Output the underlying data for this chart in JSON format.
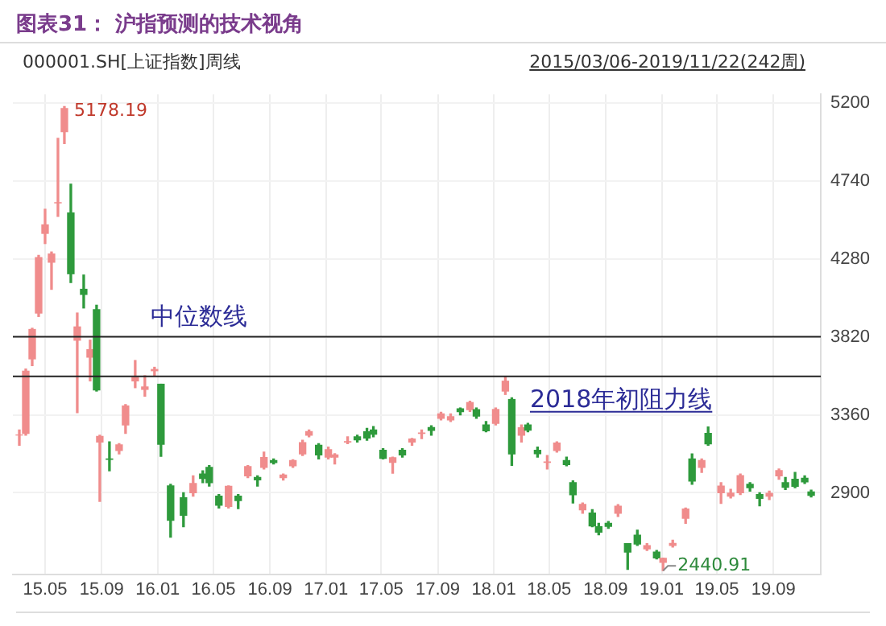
{
  "chart_data": {
    "type": "candlestick",
    "title": "图表31： 沪指预测的技术视角",
    "subtitle": "000001.SH[上证指数]周线",
    "annotations": [
      "2015/03/06-2019/11/22(242周)",
      {
        "text": "5178.19",
        "x": "2015-06-12",
        "y": 5178.19
      },
      {
        "text": "2440.91",
        "x": "2019-01-04",
        "y": 2440.91
      }
    ],
    "x": [
      "2015-03-06",
      "2015-03-20",
      "2015-04-03",
      "2015-04-17",
      "2015-05-01",
      "2015-05-15",
      "2015-05-29",
      "2015-06-12",
      "2015-06-26",
      "2015-07-10",
      "2015-07-24",
      "2015-08-07",
      "2015-08-21",
      "2015-08-28",
      "2015-09-18",
      "2015-10-09",
      "2015-10-23",
      "2015-11-13",
      "2015-12-04",
      "2015-12-25",
      "2016-01-08",
      "2016-01-29",
      "2016-02-26",
      "2016-03-18",
      "2016-04-08",
      "2016-04-22",
      "2016-05-13",
      "2016-06-03",
      "2016-06-24",
      "2016-07-15",
      "2016-08-05",
      "2016-08-19",
      "2016-09-09",
      "2016-09-30",
      "2016-10-21",
      "2016-11-11",
      "2016-11-25",
      "2016-12-16",
      "2017-01-06",
      "2017-01-20",
      "2017-02-17",
      "2017-03-10",
      "2017-03-31",
      "2017-04-14",
      "2017-05-05",
      "2017-05-26",
      "2017-06-16",
      "2017-07-07",
      "2017-07-28",
      "2017-08-18",
      "2017-09-08",
      "2017-09-29",
      "2017-10-20",
      "2017-11-10",
      "2017-11-24",
      "2017-12-15",
      "2018-01-05",
      "2018-01-26",
      "2018-02-09",
      "2018-03-02",
      "2018-03-16",
      "2018-04-06",
      "2018-04-27",
      "2018-05-18",
      "2018-06-08",
      "2018-06-22",
      "2018-07-13",
      "2018-08-03",
      "2018-08-17",
      "2018-09-07",
      "2018-09-28",
      "2018-10-19",
      "2018-11-09",
      "2018-11-30",
      "2018-12-21",
      "2019-01-04",
      "2019-01-25",
      "2019-02-22",
      "2019-03-08",
      "2019-03-29",
      "2019-04-12",
      "2019-05-10",
      "2019-05-31",
      "2019-06-21",
      "2019-07-12",
      "2019-08-02",
      "2019-08-23",
      "2019-09-13",
      "2019-09-27",
      "2019-10-18",
      "2019-11-08",
      "2019-11-22"
    ],
    "ohlc": [
      [
        3241,
        3270,
        3180,
        3241
      ],
      [
        3250,
        3630,
        3240,
        3617
      ],
      [
        3690,
        3870,
        3650,
        3863
      ],
      [
        3960,
        4300,
        3940,
        4287
      ],
      [
        4430,
        4572,
        4370,
        4480
      ],
      [
        4260,
        4320,
        4100,
        4308
      ],
      [
        4610,
        4990,
        4530,
        4611
      ],
      [
        5030,
        5178.19,
        4960,
        5166
      ],
      [
        4550,
        4720,
        4140,
        4192
      ],
      [
        3800,
        3960,
        3373,
        3878
      ],
      [
        4100,
        4184,
        3990,
        4070
      ],
      [
        3700,
        3800,
        3560,
        3744
      ],
      [
        3980,
        4006,
        3500,
        3507
      ],
      [
        3200,
        3240,
        2850,
        3232
      ],
      [
        3100,
        3200,
        3030,
        3097
      ],
      [
        3150,
        3190,
        3130,
        3183
      ],
      [
        3300,
        3420,
        3250,
        3412
      ],
      [
        3560,
        3680,
        3520,
        3580
      ],
      [
        3510,
        3590,
        3470,
        3524
      ],
      [
        3620,
        3640,
        3590,
        3627
      ],
      [
        3540,
        3540,
        3115,
        3186
      ],
      [
        2940,
        2950,
        2638,
        2738
      ],
      [
        2870,
        2900,
        2700,
        2768
      ],
      [
        2900,
        3000,
        2880,
        2955
      ],
      [
        3010,
        3030,
        2960,
        2985
      ],
      [
        3050,
        3060,
        2940,
        2960
      ],
      [
        2880,
        2890,
        2810,
        2827
      ],
      [
        2820,
        2940,
        2810,
        2938
      ],
      [
        2880,
        2890,
        2807,
        2854
      ],
      [
        3000,
        3060,
        2990,
        3054
      ],
      [
        2990,
        3000,
        2940,
        2977
      ],
      [
        3050,
        3140,
        3040,
        3108
      ],
      [
        3090,
        3100,
        3070,
        3078
      ],
      [
        2990,
        3010,
        2975,
        3005
      ],
      [
        3060,
        3095,
        3050,
        3090
      ],
      [
        3130,
        3210,
        3120,
        3196
      ],
      [
        3240,
        3270,
        3230,
        3261
      ],
      [
        3180,
        3190,
        3100,
        3123
      ],
      [
        3110,
        3170,
        3100,
        3154
      ],
      [
        3110,
        3130,
        3070,
        3123
      ],
      [
        3200,
        3230,
        3190,
        3202
      ],
      [
        3230,
        3240,
        3200,
        3212
      ],
      [
        3260,
        3280,
        3210,
        3223
      ],
      [
        3270,
        3290,
        3230,
        3246
      ],
      [
        3150,
        3160,
        3100,
        3103
      ],
      [
        3080,
        3110,
        3016,
        3107
      ],
      [
        3150,
        3160,
        3110,
        3123
      ],
      [
        3200,
        3220,
        3180,
        3217
      ],
      [
        3250,
        3270,
        3220,
        3253
      ],
      [
        3285,
        3295,
        3240,
        3268
      ],
      [
        3340,
        3375,
        3330,
        3365
      ],
      [
        3330,
        3365,
        3320,
        3348
      ],
      [
        3395,
        3400,
        3360,
        3378
      ],
      [
        3390,
        3440,
        3380,
        3432
      ],
      [
        3390,
        3400,
        3340,
        3353
      ],
      [
        3300,
        3320,
        3260,
        3266
      ],
      [
        3310,
        3400,
        3300,
        3391
      ],
      [
        3500,
        3587,
        3480,
        3558
      ],
      [
        3450,
        3460,
        3062,
        3129
      ],
      [
        3240,
        3300,
        3200,
        3283
      ],
      [
        3300,
        3310,
        3260,
        3269
      ],
      [
        3150,
        3170,
        3110,
        3131
      ],
      [
        3080,
        3120,
        3040,
        3082
      ],
      [
        3150,
        3200,
        3140,
        3193
      ],
      [
        3090,
        3110,
        3060,
        3067
      ],
      [
        2960,
        2970,
        2840,
        2889
      ],
      [
        2800,
        2840,
        2780,
        2831
      ],
      [
        2780,
        2800,
        2700,
        2705
      ],
      [
        2700,
        2720,
        2653,
        2668
      ],
      [
        2720,
        2730,
        2690,
        2702
      ],
      [
        2780,
        2830,
        2760,
        2821
      ],
      [
        2600,
        2600,
        2449,
        2550
      ],
      [
        2650,
        2680,
        2590,
        2598
      ],
      [
        2570,
        2600,
        2560,
        2588
      ],
      [
        2550,
        2560,
        2510,
        2516
      ],
      [
        2490,
        2515,
        2440.91,
        2514
      ],
      [
        2590,
        2620,
        2580,
        2601
      ],
      [
        2750,
        2810,
        2720,
        2804
      ],
      [
        3100,
        3129,
        2950,
        2969
      ],
      [
        3050,
        3100,
        3020,
        3090
      ],
      [
        3250,
        3288,
        3180,
        3189
      ],
      [
        2900,
        2960,
        2838,
        2939
      ],
      [
        2880,
        2920,
        2870,
        2898
      ],
      [
        2900,
        3010,
        2890,
        3001
      ],
      [
        2950,
        2960,
        2910,
        2930
      ],
      [
        2890,
        2900,
        2823,
        2867
      ],
      [
        2880,
        2910,
        2860,
        2897
      ],
      [
        3000,
        3040,
        2980,
        3031
      ],
      [
        2960,
        2990,
        2920,
        2932
      ],
      [
        2980,
        3020,
        2930,
        2938
      ],
      [
        2985,
        3000,
        2955,
        2964
      ],
      [
        2905,
        2915,
        2875,
        2885
      ]
    ],
    "colors": [
      "#f08c8c",
      "#f08c8c",
      "#f08c8c",
      "#f08c8c",
      "#f08c8c",
      "#f08c8c",
      "#f08c8c",
      "#f08c8c",
      "#2e9a3c",
      "#f08c8c",
      "#2e9a3c",
      "#f08c8c",
      "#2e9a3c",
      "#f08c8c",
      "#2e9a3c",
      "#f08c8c",
      "#f08c8c",
      "#f08c8c",
      "#f08c8c",
      "#f08c8c",
      "#2e9a3c",
      "#2e9a3c",
      "#2e9a3c",
      "#f08c8c",
      "#2e9a3c",
      "#2e9a3c",
      "#2e9a3c",
      "#f08c8c",
      "#2e9a3c",
      "#f08c8c",
      "#2e9a3c",
      "#f08c8c",
      "#2e9a3c",
      "#f08c8c",
      "#f08c8c",
      "#f08c8c",
      "#f08c8c",
      "#2e9a3c",
      "#f08c8c",
      "#f08c8c",
      "#f08c8c",
      "#2e9a3c",
      "#2e9a3c",
      "#2e9a3c",
      "#2e9a3c",
      "#f08c8c",
      "#2e9a3c",
      "#f08c8c",
      "#f08c8c",
      "#2e9a3c",
      "#f08c8c",
      "#f08c8c",
      "#2e9a3c",
      "#f08c8c",
      "#2e9a3c",
      "#2e9a3c",
      "#f08c8c",
      "#f08c8c",
      "#2e9a3c",
      "#f08c8c",
      "#2e9a3c",
      "#2e9a3c",
      "#f08c8c",
      "#f08c8c",
      "#2e9a3c",
      "#2e9a3c",
      "#f08c8c",
      "#2e9a3c",
      "#2e9a3c",
      "#2e9a3c",
      "#f08c8c",
      "#2e9a3c",
      "#2e9a3c",
      "#f08c8c",
      "#2e9a3c",
      "#f08c8c",
      "#f08c8c",
      "#f08c8c",
      "#2e9a3c",
      "#f08c8c",
      "#2e9a3c",
      "#f08c8c",
      "#f08c8c",
      "#f08c8c",
      "#2e9a3c",
      "#2e9a3c",
      "#f08c8c",
      "#f08c8c",
      "#2e9a3c",
      "#2e9a3c",
      "#2e9a3c",
      "#2e9a3c"
    ],
    "xlim": [
      "2015-02-20",
      "2019-12-13"
    ],
    "xticks": [
      {
        "value": "2015-05",
        "label": "15.05"
      },
      {
        "value": "2015-09",
        "label": "15.09"
      },
      {
        "value": "2016-01",
        "label": "16.01"
      },
      {
        "value": "2016-05",
        "label": "16.05"
      },
      {
        "value": "2016-09",
        "label": "16.09"
      },
      {
        "value": "2017-01",
        "label": "17.01"
      },
      {
        "value": "2017-05",
        "label": "17.05"
      },
      {
        "value": "2017-09",
        "label": "17.09"
      },
      {
        "value": "2018-01",
        "label": "18.01"
      },
      {
        "value": "2018-05",
        "label": "18.05"
      },
      {
        "value": "2018-09",
        "label": "18.09"
      },
      {
        "value": "2019-01",
        "label": "19.01"
      },
      {
        "value": "2019-05",
        "label": "19.05"
      },
      {
        "value": "2019-09",
        "label": "19.09"
      }
    ],
    "ylim": [
      2420,
      5250
    ],
    "yticks": [
      2900,
      3360,
      3820,
      4280,
      4740,
      5200
    ],
    "ref_lines": [
      {
        "axis": "y",
        "value": 3820,
        "label": "中位数线",
        "color": "#222222"
      },
      {
        "axis": "y",
        "value": 3587,
        "label": "2018年初阻力线",
        "color": "#222222"
      }
    ],
    "grid": true,
    "legend": false
  }
}
